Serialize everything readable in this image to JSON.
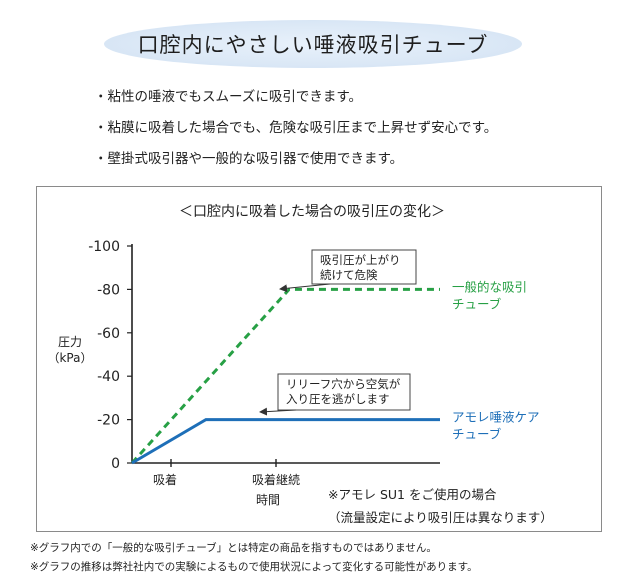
{
  "header": {
    "title": "口腔内にやさしい唾液吸引チューブ"
  },
  "bullets": [
    "・粘性の唾液でもスムーズに吸引できます。",
    "・粘膜に吸着した場合でも、危険な吸引圧まで上昇せず安心です。",
    "・壁掛式吸引器や一般的な吸引器で使用できます。"
  ],
  "chart_data": {
    "type": "line",
    "title": "＜口腔内に吸着した場合の吸引圧の変化＞",
    "ylabel": "圧力",
    "yunit": "（kPa）",
    "xlabel": "時間",
    "x_tick_labels": [
      "吸着",
      "吸着継続"
    ],
    "y_ticks": [
      "0",
      "-20",
      "-40",
      "-60",
      "-80",
      "-100"
    ],
    "y_values": [
      0,
      -20,
      -40,
      -60,
      -80,
      -100
    ],
    "ylim": [
      0,
      -100
    ],
    "xlim": [
      0,
      10
    ],
    "grid": false,
    "series": [
      {
        "name": "一般的な吸引チューブ",
        "name_lines": [
          "一般的な吸引",
          "チューブ"
        ],
        "color": "#27a045",
        "style": "dashed",
        "x": [
          0,
          5.1,
          10
        ],
        "y": [
          0,
          -80,
          -80
        ]
      },
      {
        "name": "アモレ唾液ケアチューブ",
        "name_lines": [
          "アモレ唾液ケア",
          "チューブ"
        ],
        "color": "#1e6fb8",
        "style": "solid",
        "x": [
          0,
          2.4,
          10
        ],
        "y": [
          0,
          -20,
          -20
        ]
      }
    ],
    "annotations": [
      {
        "lines": [
          "吸引圧が上がり",
          "続けて危険"
        ],
        "target_series": 0
      },
      {
        "lines": [
          "リリーフ穴から空気が",
          "入り圧を逃がします"
        ],
        "target_series": 1
      }
    ],
    "condition_note": [
      "※アモレ SU1 をご使用の場合",
      "（流量設定により吸引圧は異なります）"
    ]
  },
  "notes": [
    "※グラフ内での「一般的な吸引チューブ」とは特定の商品を指すものではありません。",
    "※グラフの推移は弊社社内での実験によるもので使用状況によって変化する可能性があります。"
  ]
}
